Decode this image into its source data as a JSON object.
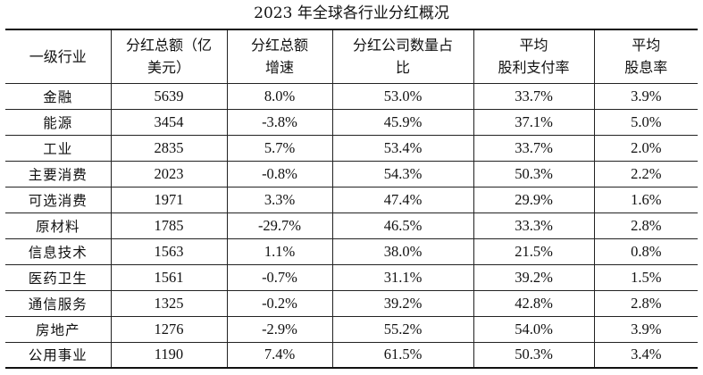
{
  "title": "2023 年全球各行业分红概况",
  "headers": [
    [
      "一级行业"
    ],
    [
      "分红总额（亿",
      "美元）"
    ],
    [
      "分红总额",
      "增速"
    ],
    [
      "分红公司数量占",
      "比"
    ],
    [
      "平均",
      "股利支付率"
    ],
    [
      "平均",
      "股息率"
    ]
  ],
  "rows": [
    [
      "金融",
      "5639",
      "8.0%",
      "53.0%",
      "33.7%",
      "3.9%"
    ],
    [
      "能源",
      "3454",
      "-3.8%",
      "45.9%",
      "37.1%",
      "5.0%"
    ],
    [
      "工业",
      "2835",
      "5.7%",
      "53.4%",
      "33.7%",
      "2.0%"
    ],
    [
      "主要消费",
      "2023",
      "-0.8%",
      "54.3%",
      "50.3%",
      "2.2%"
    ],
    [
      "可选消费",
      "1971",
      "3.3%",
      "47.4%",
      "29.9%",
      "1.6%"
    ],
    [
      "原材料",
      "1785",
      "-29.7%",
      "46.5%",
      "33.3%",
      "2.8%"
    ],
    [
      "信息技术",
      "1563",
      "1.1%",
      "38.0%",
      "21.5%",
      "0.8%"
    ],
    [
      "医药卫生",
      "1561",
      "-0.7%",
      "31.1%",
      "39.2%",
      "1.5%"
    ],
    [
      "通信服务",
      "1325",
      "-0.2%",
      "39.2%",
      "42.8%",
      "2.8%"
    ],
    [
      "房地产",
      "1276",
      "-2.9%",
      "55.2%",
      "54.0%",
      "3.9%"
    ],
    [
      "公用事业",
      "1190",
      "7.4%",
      "61.5%",
      "50.3%",
      "3.4%"
    ]
  ]
}
